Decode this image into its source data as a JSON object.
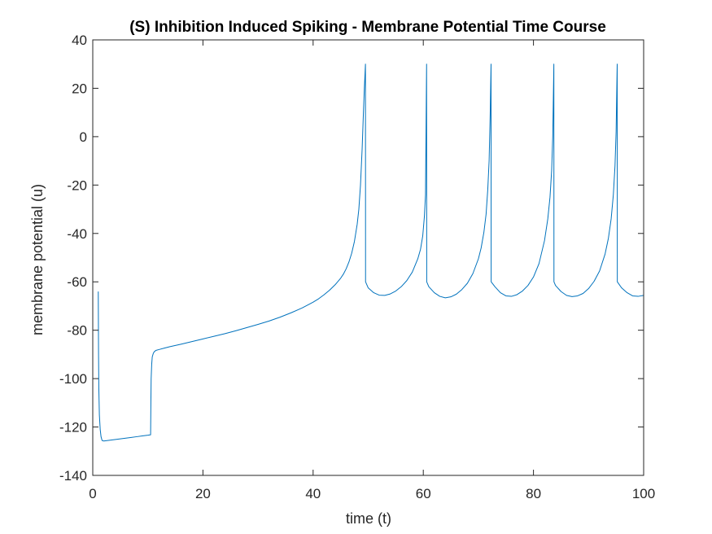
{
  "chart_data": {
    "type": "line",
    "title": "(S) Inhibition Induced Spiking - Membrane Potential Time Course",
    "xlabel": "time (t)",
    "ylabel": "membrane potential (u)",
    "xlim": [
      0,
      100
    ],
    "ylim": [
      -140,
      40
    ],
    "xticks": [
      0,
      20,
      40,
      60,
      80,
      100
    ],
    "yticks": [
      -140,
      -120,
      -100,
      -80,
      -60,
      -40,
      -20,
      0,
      20,
      40
    ],
    "grid": false,
    "box": true,
    "colors": {
      "line": "#0072BD",
      "axes": "#262626"
    },
    "series": [
      {
        "x": [
          1.0,
          1.05,
          1.1,
          1.2,
          1.35,
          1.5,
          1.7,
          2.0,
          3.0,
          4.0,
          5.0,
          6.0,
          7.0,
          8.0,
          9.0,
          10.0,
          10.5,
          10.55,
          10.6,
          10.7,
          10.8,
          11.0,
          11.2,
          11.5,
          12.0,
          13.0,
          14.0,
          16.0,
          18.0,
          20.0,
          22.0,
          24.0,
          26.0,
          28.0,
          30.0,
          32.0,
          34.0,
          36.0,
          38.0,
          40.0,
          41.0,
          42.0,
          43.0,
          44.0,
          45.0,
          45.5,
          46.0,
          46.5,
          47.0,
          47.5,
          48.0,
          48.3,
          48.6,
          48.9,
          49.1,
          49.3,
          49.5,
          49.52,
          50.0,
          51.0,
          52.0,
          53.0,
          54.0,
          55.0,
          56.0,
          57.0,
          58.0,
          59.0,
          59.5,
          59.9,
          60.2,
          60.4,
          60.6,
          60.62,
          61.0,
          62.0,
          63.0,
          64.0,
          65.0,
          66.0,
          67.0,
          68.0,
          69.0,
          70.0,
          70.5,
          71.0,
          71.4,
          71.7,
          71.95,
          72.15,
          72.3,
          72.32,
          73.0,
          74.0,
          75.0,
          76.0,
          77.0,
          78.0,
          79.0,
          80.0,
          81.0,
          82.0,
          82.6,
          83.0,
          83.3,
          83.5,
          83.7,
          83.72,
          84.0,
          85.0,
          86.0,
          87.0,
          88.0,
          89.0,
          90.0,
          91.0,
          92.0,
          93.0,
          93.6,
          94.1,
          94.5,
          94.8,
          95.0,
          95.2,
          95.22,
          96.0,
          97.0,
          98.0,
          99.0,
          100.0
        ],
        "y": [
          -64,
          -90,
          -104,
          -115,
          -121,
          -124,
          -125.6,
          -125.8,
          -125.5,
          -125.2,
          -124.9,
          -124.6,
          -124.3,
          -124.0,
          -123.7,
          -123.4,
          -123.2,
          -110,
          -100,
          -94,
          -91,
          -89.5,
          -88.8,
          -88.3,
          -88.0,
          -87.4,
          -86.8,
          -85.8,
          -84.7,
          -83.6,
          -82.5,
          -81.4,
          -80.2,
          -78.9,
          -77.6,
          -76.2,
          -74.6,
          -72.8,
          -70.8,
          -68.4,
          -67.0,
          -65.3,
          -63.4,
          -61.2,
          -58.5,
          -56.8,
          -54.6,
          -51.8,
          -48.2,
          -43.3,
          -36.2,
          -30.0,
          -20.0,
          -5.0,
          8.0,
          20.0,
          30.0,
          -60.0,
          -62.5,
          -64.5,
          -65.5,
          -65.6,
          -65.0,
          -63.8,
          -62.0,
          -59.5,
          -56.0,
          -50.5,
          -46.5,
          -41.0,
          -33.0,
          -24.0,
          30.0,
          -60.0,
          -62.0,
          -64.5,
          -66.0,
          -66.6,
          -66.2,
          -65.1,
          -63.2,
          -60.6,
          -56.6,
          -50.5,
          -46.0,
          -39.5,
          -32.0,
          -22.0,
          -10.0,
          10.0,
          30.0,
          -60.0,
          -62.0,
          -64.5,
          -65.8,
          -66.0,
          -65.3,
          -63.8,
          -61.5,
          -58.0,
          -52.5,
          -43.0,
          -34.0,
          -25.0,
          -14.0,
          0.0,
          30.0,
          -60.0,
          -61.5,
          -64.0,
          -65.6,
          -66.1,
          -65.8,
          -64.8,
          -62.8,
          -59.8,
          -55.5,
          -48.5,
          -42.0,
          -34.0,
          -24.0,
          -12.0,
          2.0,
          30.0,
          -60.0,
          -62.5,
          -64.5,
          -65.8,
          -66.0,
          -65.6
        ]
      }
    ]
  }
}
